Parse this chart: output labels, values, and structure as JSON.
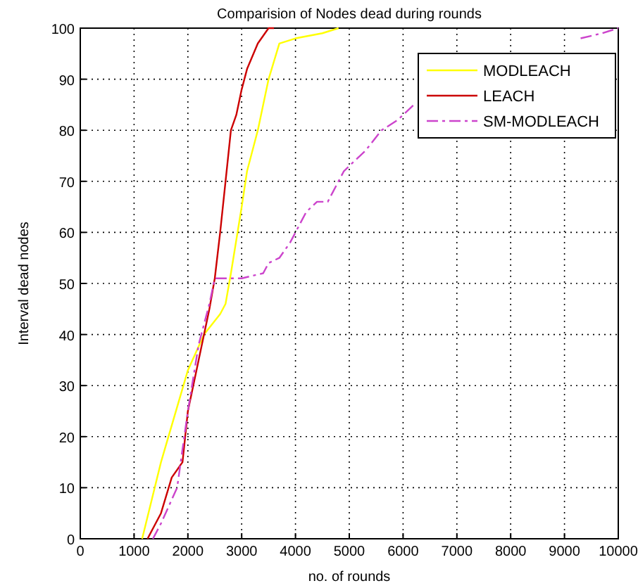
{
  "chart_data": {
    "type": "line",
    "title": "Comparision of Nodes dead during rounds",
    "xlabel": "no. of rounds",
    "ylabel": "Interval dead nodes",
    "xlim": [
      0,
      10000
    ],
    "ylim": [
      0,
      100
    ],
    "xticks": [
      0,
      1000,
      2000,
      3000,
      4000,
      5000,
      6000,
      7000,
      8000,
      9000,
      10000
    ],
    "yticks": [
      0,
      10,
      20,
      30,
      40,
      50,
      60,
      70,
      80,
      90,
      100
    ],
    "grid": true,
    "legend": "top right",
    "series": [
      {
        "name": "MODLEACH",
        "color": "#ffff00",
        "line_style": "solid",
        "x": [
          1150,
          1500,
          2000,
          2300,
          2600,
          2700,
          2800,
          3000,
          3100,
          3300,
          3500,
          3700,
          4000,
          4500,
          4800
        ],
        "values": [
          0,
          15,
          33,
          40,
          44,
          46,
          52,
          65,
          72,
          80,
          90,
          97,
          98,
          99,
          100
        ]
      },
      {
        "name": "LEACH",
        "color": "#cc0000",
        "line_style": "solid",
        "x": [
          1250,
          1500,
          1700,
          1900,
          2000,
          2200,
          2400,
          2500,
          2600,
          2700,
          2800,
          2900,
          3000,
          3100,
          3300,
          3500,
          3600
        ],
        "values": [
          0,
          5,
          12,
          15,
          25,
          35,
          45,
          51,
          60,
          70,
          80,
          83,
          88,
          92,
          97,
          100,
          100
        ]
      },
      {
        "name": "SM-MODLEACH",
        "color": "#cc44cc",
        "line_style": "dashdot",
        "x": [
          1350,
          1500,
          1800,
          2000,
          2200,
          2400,
          2500,
          2600,
          3000,
          3400,
          3500,
          3700,
          3900,
          4200,
          4400,
          4600,
          4900,
          5000,
          5300,
          5600,
          5900,
          6200,
          7800,
          9300,
          9700,
          10000
        ],
        "values": [
          0,
          3,
          10,
          25,
          38,
          46,
          51,
          51,
          51,
          52,
          54,
          55,
          58,
          64,
          66,
          66,
          72,
          73,
          76,
          80,
          82,
          85,
          null,
          98,
          99,
          100
        ]
      }
    ]
  }
}
